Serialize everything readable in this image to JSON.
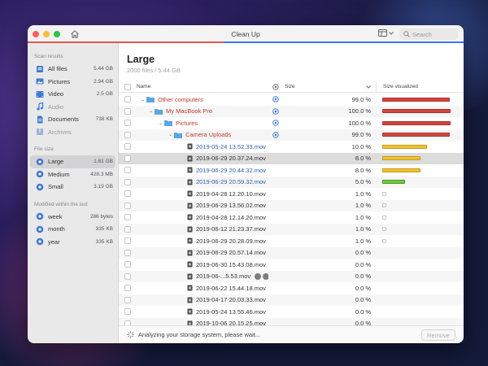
{
  "window": {
    "title": "Clean Up",
    "search_placeholder": "Search",
    "icons": [
      "home-icon",
      "view-toggle-icon",
      "chevron-down-icon",
      "search-icon"
    ]
  },
  "sidebar": {
    "scan_results_label": "Scan results",
    "scan_results": [
      {
        "label": "All files",
        "size": "5.44 GB",
        "icon": "files-icon"
      },
      {
        "label": "Pictures",
        "size": "2.94 GB",
        "icon": "pictures-icon"
      },
      {
        "label": "Video",
        "size": "2.5 GB",
        "icon": "video-icon"
      },
      {
        "label": "Audio",
        "size": "",
        "icon": "audio-icon"
      },
      {
        "label": "Documents",
        "size": "738 KB",
        "icon": "documents-icon"
      },
      {
        "label": "Archives",
        "size": "",
        "icon": "archives-icon"
      }
    ],
    "file_size_label": "File size",
    "file_size": [
      {
        "label": "Large",
        "size": "1.81 GB",
        "active": true
      },
      {
        "label": "Medium",
        "size": "428.3 MB"
      },
      {
        "label": "Small",
        "size": "3.19 GB"
      }
    ],
    "modified_label": "Modified within the last",
    "modified": [
      {
        "label": "week",
        "size": "286 bytes"
      },
      {
        "label": "month",
        "size": "335 KB"
      },
      {
        "label": "year",
        "size": "335 KB"
      }
    ]
  },
  "main": {
    "title": "Large",
    "subtitle": "2000 files / 5.44 GB",
    "columns": {
      "name": "Name",
      "size": "Size",
      "viz": "Size visualized"
    },
    "rows": [
      {
        "level": 0,
        "type": "folder",
        "expanded": true,
        "name": "Other computers",
        "pct": "99.0 %",
        "fill": 0.99,
        "bar": "red",
        "target": true,
        "color": "red"
      },
      {
        "level": 1,
        "type": "folder",
        "expanded": true,
        "name": "My MacBook Pro",
        "pct": "100.0 %",
        "fill": 1.0,
        "bar": "red",
        "target": true,
        "color": "red"
      },
      {
        "level": 2,
        "type": "folder",
        "expanded": true,
        "name": "Pictures",
        "pct": "100.0 %",
        "fill": 1.0,
        "bar": "red",
        "target": true,
        "color": "red"
      },
      {
        "level": 3,
        "type": "folder",
        "expanded": true,
        "name": "Camera Uploads",
        "pct": "99.0 %",
        "fill": 0.99,
        "bar": "red",
        "target": true,
        "color": "red"
      },
      {
        "level": 4,
        "type": "file",
        "name": "2019-05-24 13.52.33.mov",
        "pct": "10.0 %",
        "fill": 0.66,
        "bar": "yel",
        "color": "blue"
      },
      {
        "level": 4,
        "type": "file",
        "name": "2019-06-29 20.37.24.mov",
        "pct": "8.0 %",
        "fill": 0.56,
        "bar": "yel",
        "color": "dark",
        "selected": true
      },
      {
        "level": 4,
        "type": "file",
        "name": "2019-06-29 20.44.32.mov",
        "pct": "8.0 %",
        "fill": 0.56,
        "bar": "yel",
        "color": "blue"
      },
      {
        "level": 4,
        "type": "file",
        "name": "2019-06-29 20.59.32.mov",
        "pct": "5.0 %",
        "fill": 0.33,
        "bar": "grn",
        "color": "blue"
      },
      {
        "level": 4,
        "type": "file",
        "name": "2019-04-28 12.20.10.mov",
        "pct": "1.0 %",
        "fill": 0,
        "bar": "empty",
        "color": "dark"
      },
      {
        "level": 4,
        "type": "file",
        "name": "2019-06-29 13.56.02.mov",
        "pct": "1.0 %",
        "fill": 0,
        "bar": "empty",
        "color": "dark"
      },
      {
        "level": 4,
        "type": "file",
        "name": "2019-04-28 12.14.20.mov",
        "pct": "1.0 %",
        "fill": 0,
        "bar": "empty",
        "color": "dark"
      },
      {
        "level": 4,
        "type": "file",
        "name": "2019-06-12 21.23.37.mov",
        "pct": "1.0 %",
        "fill": 0,
        "bar": "empty",
        "color": "dark"
      },
      {
        "level": 4,
        "type": "file",
        "name": "2019-06-29 20.28.09.mov",
        "pct": "1.0 %",
        "fill": 0,
        "bar": "empty",
        "color": "dark"
      },
      {
        "level": 4,
        "type": "file",
        "name": "2019-06-29 20.57.14.mov",
        "pct": "0.0 %",
        "fill": 0,
        "bar": "none",
        "color": "dark"
      },
      {
        "level": 4,
        "type": "file",
        "name": "2019-06-30 15.43.08.mov",
        "pct": "0.0 %",
        "fill": 0,
        "bar": "none",
        "color": "dark"
      },
      {
        "level": 4,
        "type": "file",
        "name": "2019-06-...5.53.mov",
        "pct": "0.0 %",
        "fill": 0,
        "bar": "none",
        "color": "dark",
        "mini_icons": true
      },
      {
        "level": 4,
        "type": "file",
        "name": "2019-06-22 15.44.18.mov",
        "pct": "0.0 %",
        "fill": 0,
        "bar": "none",
        "color": "dark"
      },
      {
        "level": 4,
        "type": "file",
        "name": "2019-04-17 20.03.33.mov",
        "pct": "0.0 %",
        "fill": 0,
        "bar": "none",
        "color": "dark"
      },
      {
        "level": 4,
        "type": "file",
        "name": "2019-05-24 13.55.46.mov",
        "pct": "0.0 %",
        "fill": 0,
        "bar": "none",
        "color": "dark"
      },
      {
        "level": 4,
        "type": "file",
        "name": "2019-10-06 20.15.25.mov",
        "pct": "0.0 %",
        "fill": 0,
        "bar": "none",
        "color": "dark"
      }
    ]
  },
  "footer": {
    "status": "Analyzing your storage system, please wait...",
    "remove_label": "Remove"
  },
  "colors": {
    "bar_red": "#d64541",
    "bar_yellow": "#f1c232",
    "bar_green": "#6ccb3f",
    "link_blue": "#2f5fb3",
    "folder_red": "#c0392b"
  }
}
